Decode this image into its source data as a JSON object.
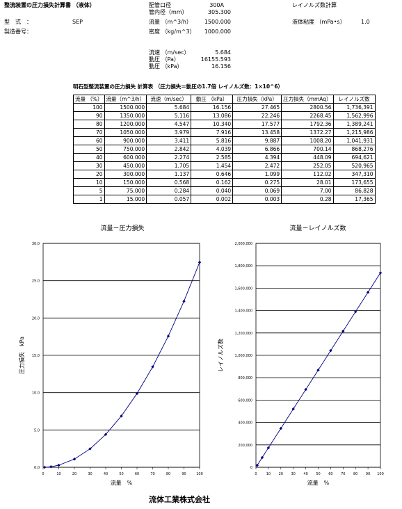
{
  "header": {
    "doc_title": "整流装置の圧力損失計算書 （液体）",
    "model_label": "型　式　：",
    "model_value": "SEP",
    "serial_label": "製造番号：",
    "pipe_label": "配管口径",
    "pipe_value": "300A",
    "inner_dia_label": "管内径（mm）",
    "inner_dia_value": "305.300",
    "flow_label": "流量 （m^3/h）",
    "flow_value": "1500.000",
    "density_label": "密度 （kg/m^3）",
    "density_value": "1000.000",
    "reynolds_title": "レイノルズ数計算",
    "viscosity_label": "液体粘度 （mPa•s）",
    "viscosity_value": "1.0",
    "velocity_label": "流速 （m/sec）",
    "velocity_value": "5.684",
    "dyn_pa_label": "動圧 （Pa）",
    "dyn_pa_value": "16155.593",
    "dyn_kpa_label": "動圧 （kPa）",
    "dyn_kpa_value": "16.156"
  },
  "table": {
    "title": "明石型整流装置の圧力損失 計算表 （圧力損失＝動圧の1.7倍 レイノルズ数：1×10^6）",
    "columns": [
      "流量 （%）",
      "流量（m^3/h）",
      "流速（m/sec）",
      "動圧 （kPa）",
      "圧力損失（kPa）",
      "圧力損失（mmAq）",
      "レイノルズ数"
    ],
    "rows": [
      [
        "100",
        "1500.000",
        "5.684",
        "16.156",
        "27.465",
        "2800.56",
        "1,736,391"
      ],
      [
        "90",
        "1350.000",
        "5.116",
        "13.086",
        "22.246",
        "2268.45",
        "1,562,996"
      ],
      [
        "80",
        "1200.000",
        "4.547",
        "10.340",
        "17.577",
        "1792.36",
        "1,389,241"
      ],
      [
        "70",
        "1050.000",
        "3.979",
        "7.916",
        "13.458",
        "1372.27",
        "1,215,986"
      ],
      [
        "60",
        "900.000",
        "3.411",
        "5.816",
        "9.887",
        "1008.20",
        "1,041,931"
      ],
      [
        "50",
        "750.000",
        "2.842",
        "4.039",
        "6.866",
        "700.14",
        "868,276"
      ],
      [
        "40",
        "600.000",
        "2.274",
        "2.585",
        "4.394",
        "448.09",
        "694,621"
      ],
      [
        "30",
        "450.000",
        "1.705",
        "1.454",
        "2.472",
        "252.05",
        "520,965"
      ],
      [
        "20",
        "300.000",
        "1.137",
        "0.646",
        "1.099",
        "112.02",
        "347,310"
      ],
      [
        "10",
        "150.000",
        "0.568",
        "0.162",
        "0.275",
        "28.01",
        "173,655"
      ],
      [
        "5",
        "75.000",
        "0.284",
        "0.040",
        "0.069",
        "7.00",
        "86,828"
      ],
      [
        "1",
        "15.000",
        "0.057",
        "0.002",
        "0.003",
        "0.28",
        "17,365"
      ]
    ]
  },
  "chart_data": [
    {
      "type": "line",
      "title": "流量－圧力損失",
      "xlabel": "流量　%",
      "ylabel": "圧力損失　kPa",
      "xlim": [
        0,
        100
      ],
      "ylim": [
        0,
        30
      ],
      "x_ticks": [
        "0",
        "10",
        "20",
        "30",
        "40",
        "50",
        "60",
        "70",
        "80",
        "90",
        "100"
      ],
      "y_ticks": [
        "0.0",
        "5.0",
        "10.0",
        "15.0",
        "20.0",
        "25.0",
        "30.0"
      ],
      "grid": true,
      "x": [
        1,
        5,
        10,
        20,
        30,
        40,
        50,
        60,
        70,
        80,
        90,
        100
      ],
      "y": [
        0.003,
        0.069,
        0.275,
        1.099,
        2.472,
        4.394,
        6.866,
        9.887,
        13.458,
        17.577,
        22.246,
        27.465
      ],
      "color": "#000080"
    },
    {
      "type": "line",
      "title": "流量－レイノルズ数",
      "xlabel": "流量　%",
      "ylabel": "レイノルズ数",
      "xlim": [
        0,
        100
      ],
      "ylim": [
        0,
        2000000
      ],
      "x_ticks": [
        "0",
        "10",
        "20",
        "30",
        "40",
        "50",
        "60",
        "70",
        "80",
        "90",
        "100"
      ],
      "y_ticks": [
        "0",
        "200,000",
        "400,000",
        "600,000",
        "800,000",
        "1,000,000",
        "1,200,000",
        "1,400,000",
        "1,600,000",
        "1,800,000",
        "2,000,000"
      ],
      "grid": true,
      "x": [
        1,
        5,
        10,
        20,
        30,
        40,
        50,
        60,
        70,
        80,
        90,
        100
      ],
      "y": [
        17365,
        86828,
        173655,
        347310,
        520965,
        694621,
        868276,
        1041931,
        1215986,
        1389241,
        1562996,
        1736391
      ],
      "color": "#000080"
    }
  ],
  "footer": {
    "company": "流体工業株式会社"
  }
}
